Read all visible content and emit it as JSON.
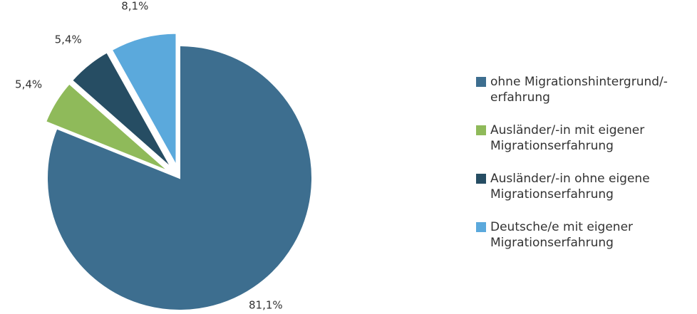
{
  "chart_data": {
    "type": "pie",
    "series": [
      {
        "name": "ohne Migrationshintergrund/-erfahrung",
        "color": "#3d6e8f",
        "values": [
          81.1
        ],
        "value_labels": [
          "81,1%"
        ]
      },
      {
        "name": "Ausländer/-in mit eigener Migrationserfahrung",
        "color": "#8fba5a",
        "values": [
          5.4
        ],
        "value_labels": [
          "5,4%"
        ]
      },
      {
        "name": "Ausländer/-in ohne eigene Migrationserfahrung",
        "color": "#264d63",
        "values": [
          5.4
        ],
        "value_labels": [
          "5,4%"
        ]
      },
      {
        "name": "Deutsche/e mit eigener Migrationserfahrung",
        "color": "#5ba9dc",
        "values": [
          8.1
        ],
        "value_labels": [
          "8,1%"
        ]
      }
    ],
    "legend": "right"
  }
}
